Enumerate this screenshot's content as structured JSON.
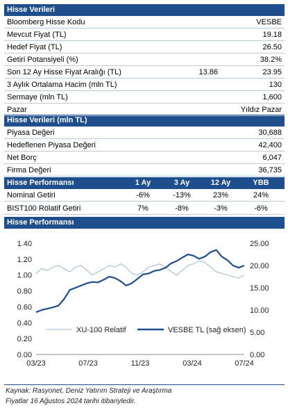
{
  "section1": {
    "title": "Hisse Verileri",
    "rows": [
      {
        "label": "Bloomberg Hisse Kodu",
        "value": "VESBE"
      },
      {
        "label": "Mevcut Fiyat (TL)",
        "value": "19.18"
      },
      {
        "label": "Hedef Fiyat (TL)",
        "value": "26.50"
      },
      {
        "label": "Getiri Potansiyeli (%)",
        "value": "38.2%"
      },
      {
        "label": "Son 12 Ay Hisse Fiyat Aralığı (TL)",
        "value_low": "13.86",
        "value": "23.95"
      },
      {
        "label": "3 Aylık Ortalama Hacim (mln TL)",
        "value": "130"
      },
      {
        "label": "Sermaye (mln TL)",
        "value": "1,600"
      },
      {
        "label": "Pazar",
        "value": "Yıldız Pazar"
      }
    ]
  },
  "section2": {
    "title": "Hisse Verileri (mln TL)",
    "rows": [
      {
        "label": "Piyasa Değeri",
        "value": "30,688"
      },
      {
        "label": "Hedeflenen Piyasa Değeri",
        "value": "42,400"
      },
      {
        "label": "Net Borç",
        "value": "6,047"
      },
      {
        "label": "Firma Değeri",
        "value": "36,735"
      }
    ]
  },
  "section3": {
    "title": "Hisse Performansı",
    "headers": [
      "1 Ay",
      "3 Ay",
      "12 Ay",
      "YBB"
    ],
    "rows": [
      {
        "label": "Nominal Getiri",
        "values": [
          "-6%",
          "-13%",
          "23%",
          "24%"
        ]
      },
      {
        "label": "BIST100 Rölatif Getiri",
        "values": [
          "7%",
          "-8%",
          "-3%",
          "-6%"
        ]
      }
    ]
  },
  "section4": {
    "title": "Hisse Performansı"
  },
  "chart_data": {
    "type": "line",
    "x_ticks": [
      "03/23",
      "07/23",
      "11/23",
      "03/24",
      "07/24"
    ],
    "y_left": {
      "ticks": [
        "0.00",
        "0.20",
        "0.40",
        "0.60",
        "0.80",
        "1.00",
        "1.20",
        "1.40"
      ],
      "range": [
        0,
        1.4
      ]
    },
    "y_right": {
      "ticks": [
        "0.00",
        "5.00",
        "10.00",
        "15.00",
        "20.00",
        "25.00"
      ],
      "range": [
        0,
        25
      ]
    },
    "series": [
      {
        "name": "XU-100 Relatif",
        "axis": "left",
        "color": "#9ab7d8",
        "values": [
          1.02,
          1.08,
          1.06,
          1.1,
          1.12,
          1.08,
          1.04,
          1.1,
          1.12,
          1.06,
          1.0,
          1.04,
          1.08,
          1.12,
          1.1,
          1.14,
          1.1,
          1.02,
          1.0,
          1.04,
          1.1,
          1.12,
          1.14,
          1.1,
          1.04,
          1.0,
          1.06,
          1.12,
          1.14,
          1.18,
          1.16,
          1.1,
          1.04,
          1.02,
          1.0,
          0.98,
          0.96,
          1.0
        ]
      },
      {
        "name": "VESBE TL (sağ eksen)",
        "axis": "right",
        "color": "#1f4e8c",
        "values": [
          9.5,
          10.0,
          10.3,
          10.6,
          11.0,
          12.5,
          14.5,
          15.0,
          15.5,
          16.0,
          16.3,
          16.2,
          16.8,
          17.5,
          17.2,
          16.5,
          15.5,
          16.0,
          17.0,
          18.0,
          18.2,
          18.8,
          19.0,
          19.5,
          20.5,
          21.0,
          21.8,
          22.5,
          22.2,
          21.5,
          22.0,
          23.0,
          23.5,
          22.0,
          21.2,
          20.0,
          19.5,
          20.0
        ]
      }
    ]
  },
  "footnote": {
    "line1": "Kaynak: Rasyonet, Deniz Yatırım Strateji ve Araştırma",
    "line2": "Fiyatlar 16 Ağustos 2024 tarihi itibariyledir."
  }
}
